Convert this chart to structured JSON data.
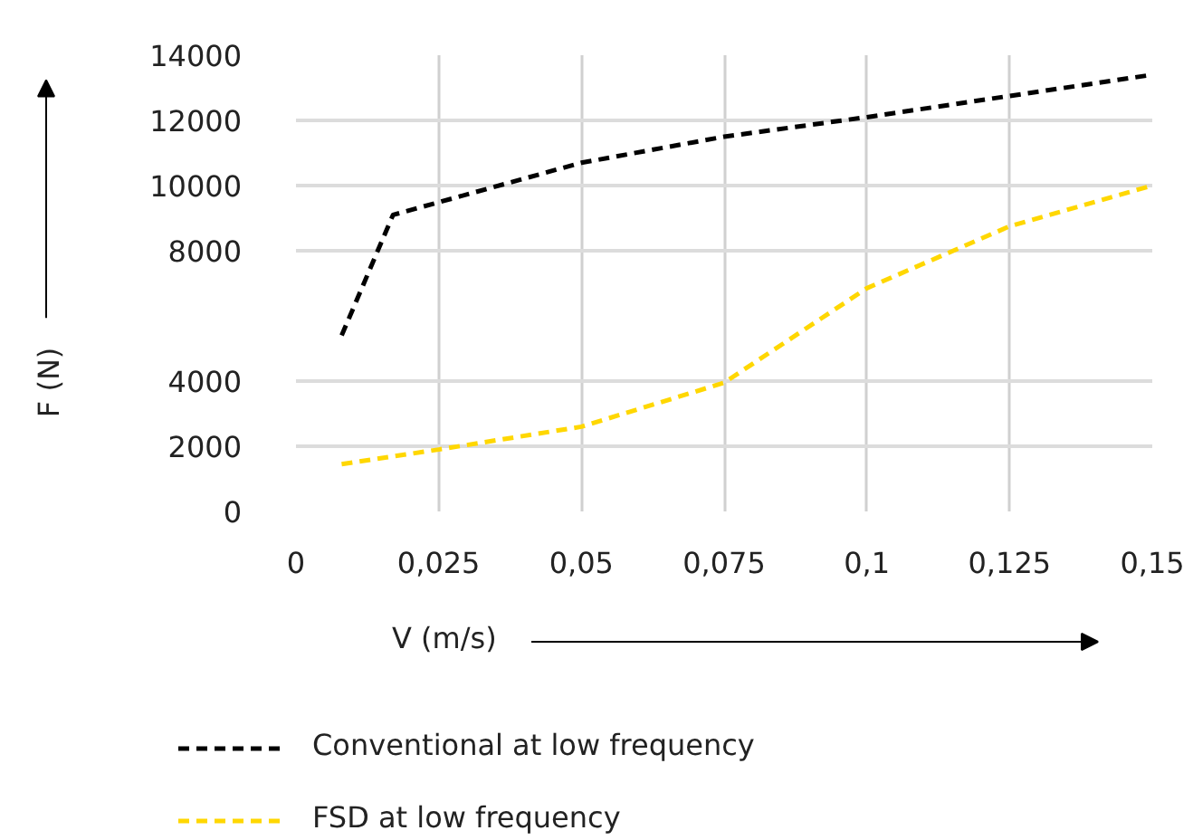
{
  "chart_data": {
    "type": "line",
    "xlabel": "V (m/s)",
    "ylabel": "F (N)",
    "xlim": [
      0,
      0.15
    ],
    "ylim": [
      0,
      14000
    ],
    "xticks": [
      {
        "value": 0,
        "label": "0"
      },
      {
        "value": 0.025,
        "label": "0,025"
      },
      {
        "value": 0.05,
        "label": "0,05"
      },
      {
        "value": 0.075,
        "label": "0,075"
      },
      {
        "value": 0.1,
        "label": "0,1"
      },
      {
        "value": 0.125,
        "label": "0,125"
      },
      {
        "value": 0.15,
        "label": "0,15"
      }
    ],
    "yticks": [
      0,
      2000,
      4000,
      8000,
      10000,
      12000,
      14000
    ],
    "grid": true,
    "legend": "bottom",
    "line_style": "dashed",
    "marker": "none",
    "series": [
      {
        "name": "Conventional at low frequency",
        "color": "#000000",
        "x": [
          0.008,
          0.017,
          0.05,
          0.075,
          0.1,
          0.15
        ],
        "values": [
          5400,
          9100,
          10700,
          11500,
          12100,
          13400
        ]
      },
      {
        "name": "FSD at low frequency",
        "color": "#ffd700",
        "x": [
          0.008,
          0.025,
          0.05,
          0.075,
          0.1,
          0.125,
          0.15
        ],
        "values": [
          1450,
          1900,
          2600,
          3950,
          6850,
          8750,
          10000
        ]
      }
    ]
  }
}
